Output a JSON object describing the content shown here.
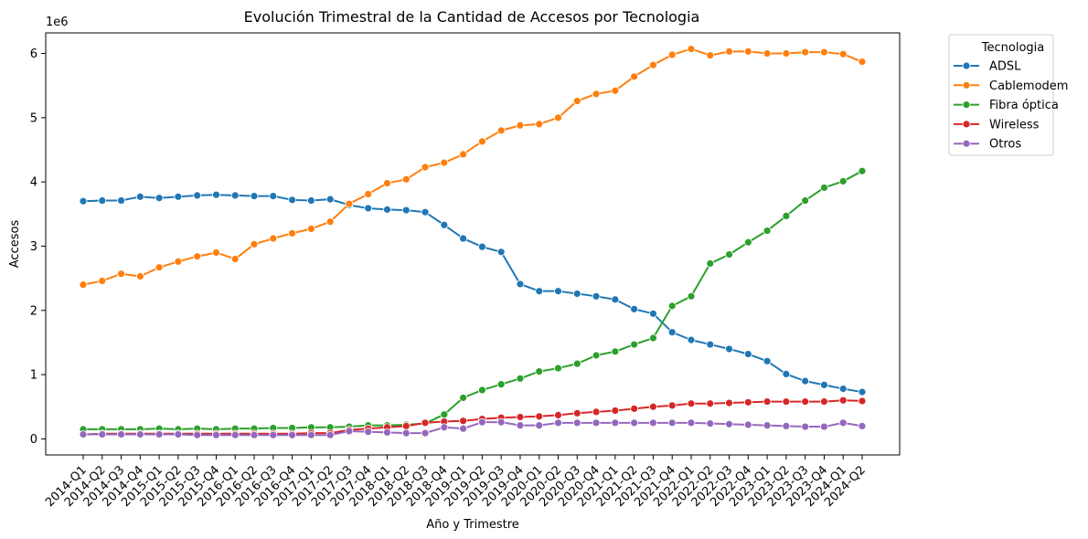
{
  "chart_data": {
    "type": "line",
    "title": "Evolución Trimestral de la Cantidad de Accesos por Tecnologia",
    "xlabel": "Año y Trimestre",
    "ylabel": "Accesos",
    "y_scale_note": "1e6",
    "ylim": [
      -250000,
      6320000
    ],
    "yticks": [
      0,
      1000000,
      2000000,
      3000000,
      4000000,
      5000000,
      6000000
    ],
    "ytick_labels": [
      "0",
      "1",
      "2",
      "3",
      "4",
      "5",
      "6"
    ],
    "grid": false,
    "legend_title": "Tecnologia",
    "legend_position": "outside-top-right",
    "categories": [
      "2014-Q1",
      "2014-Q2",
      "2014-Q3",
      "2014-Q4",
      "2015-Q1",
      "2015-Q2",
      "2015-Q3",
      "2015-Q4",
      "2016-Q1",
      "2016-Q2",
      "2016-Q3",
      "2016-Q4",
      "2017-Q1",
      "2017-Q2",
      "2017-Q3",
      "2017-Q4",
      "2018-Q1",
      "2018-Q2",
      "2018-Q3",
      "2018-Q4",
      "2019-Q1",
      "2019-Q2",
      "2019-Q3",
      "2019-Q4",
      "2020-Q1",
      "2020-Q2",
      "2020-Q3",
      "2020-Q4",
      "2021-Q1",
      "2021-Q2",
      "2021-Q3",
      "2021-Q4",
      "2022-Q1",
      "2022-Q2",
      "2022-Q3",
      "2022-Q4",
      "2023-Q1",
      "2023-Q2",
      "2023-Q3",
      "2023-Q4",
      "2024-Q1",
      "2024-Q2"
    ],
    "series": [
      {
        "name": "ADSL",
        "color": "#1f77b4",
        "values": [
          3700000,
          3710000,
          3710000,
          3770000,
          3750000,
          3770000,
          3790000,
          3800000,
          3790000,
          3780000,
          3780000,
          3720000,
          3710000,
          3730000,
          3640000,
          3590000,
          3570000,
          3560000,
          3530000,
          3330000,
          3120000,
          2990000,
          2910000,
          2410000,
          2300000,
          2300000,
          2260000,
          2220000,
          2170000,
          2020000,
          1950000,
          1660000,
          1540000,
          1470000,
          1400000,
          1320000,
          1210000,
          1010000,
          900000,
          840000,
          780000,
          730000
        ]
      },
      {
        "name": "Cablemodem",
        "color": "#ff7f0e",
        "values": [
          2400000,
          2460000,
          2570000,
          2530000,
          2670000,
          2760000,
          2840000,
          2900000,
          2800000,
          3030000,
          3120000,
          3200000,
          3270000,
          3380000,
          3660000,
          3810000,
          3980000,
          4040000,
          4230000,
          4300000,
          4430000,
          4630000,
          4800000,
          4880000,
          4900000,
          5000000,
          5260000,
          5370000,
          5420000,
          5640000,
          5820000,
          5980000,
          6070000,
          5970000,
          6030000,
          6030000,
          6000000,
          6000000,
          6020000,
          6020000,
          5990000,
          5870000
        ]
      },
      {
        "name": "Fibra óptica",
        "color": "#2ca02c",
        "values": [
          150000,
          150000,
          150000,
          150000,
          160000,
          150000,
          160000,
          150000,
          160000,
          160000,
          170000,
          170000,
          180000,
          180000,
          190000,
          210000,
          210000,
          220000,
          240000,
          380000,
          640000,
          760000,
          850000,
          940000,
          1050000,
          1100000,
          1170000,
          1300000,
          1360000,
          1470000,
          1570000,
          2070000,
          2220000,
          2730000,
          2870000,
          3060000,
          3240000,
          3470000,
          3710000,
          3910000,
          4010000,
          4170000
        ]
      },
      {
        "name": "Wireless",
        "color": "#d62728",
        "values": [
          70000,
          80000,
          80000,
          80000,
          80000,
          80000,
          80000,
          80000,
          80000,
          80000,
          80000,
          80000,
          90000,
          90000,
          140000,
          160000,
          180000,
          200000,
          250000,
          270000,
          280000,
          310000,
          330000,
          340000,
          350000,
          370000,
          400000,
          420000,
          440000,
          470000,
          500000,
          520000,
          550000,
          550000,
          560000,
          570000,
          580000,
          580000,
          580000,
          580000,
          600000,
          590000
        ]
      },
      {
        "name": "Otros",
        "color": "#9467bd",
        "values": [
          70000,
          70000,
          70000,
          70000,
          70000,
          70000,
          60000,
          60000,
          60000,
          60000,
          60000,
          60000,
          60000,
          60000,
          120000,
          110000,
          100000,
          90000,
          90000,
          180000,
          160000,
          260000,
          260000,
          210000,
          210000,
          250000,
          250000,
          250000,
          250000,
          250000,
          250000,
          250000,
          250000,
          240000,
          230000,
          220000,
          210000,
          200000,
          190000,
          190000,
          250000,
          200000
        ]
      }
    ]
  }
}
